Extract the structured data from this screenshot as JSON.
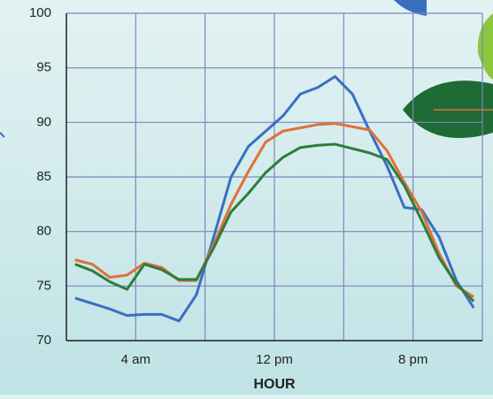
{
  "chart_data": {
    "type": "line",
    "x": [
      0.5,
      1.5,
      2.5,
      3.5,
      4.5,
      5.5,
      6.5,
      7.5,
      8.5,
      9.5,
      10.5,
      11.5,
      12.5,
      13.5,
      14.5,
      15.5,
      16.5,
      17.5,
      18.5,
      19.5,
      20.5,
      21.5,
      22.5,
      23.5
    ],
    "series": [
      {
        "color": "#3a6fc0",
        "values": [
          73.9,
          73.4,
          72.9,
          72.3,
          72.4,
          72.4,
          71.8,
          74.2,
          79.5,
          85,
          87.8,
          89.2,
          90.6,
          92.6,
          93.2,
          94.2,
          92.6,
          89.2,
          86,
          82.2,
          82,
          79.5,
          75.5,
          73
        ]
      },
      {
        "color": "#e0703a",
        "values": [
          77.4,
          77,
          75.8,
          76,
          77.1,
          76.7,
          75.5,
          75.5,
          78.8,
          82.5,
          85.5,
          88.2,
          89.2,
          89.5,
          89.8,
          89.9,
          89.6,
          89.3,
          87.4,
          84.5,
          81.8,
          78,
          75,
          74
        ]
      },
      {
        "color": "#2e7d3a",
        "values": [
          77,
          76.4,
          75.4,
          74.7,
          77,
          76.5,
          75.6,
          75.6,
          78.5,
          81.8,
          83.5,
          85.4,
          86.8,
          87.7,
          87.9,
          88,
          87.6,
          87.2,
          86.6,
          84.2,
          81,
          77.6,
          75.2,
          73.6
        ]
      }
    ],
    "xlim": [
      0,
      24
    ],
    "xticks": [
      {
        "value": 4,
        "label": "4 am"
      },
      {
        "value": 8,
        "label": null
      },
      {
        "value": 12,
        "label": "12 pm"
      },
      {
        "value": 16,
        "label": null
      },
      {
        "value": 20,
        "label": "8 pm"
      },
      {
        "value": 24,
        "label": null
      }
    ],
    "ylim": [
      70,
      100
    ],
    "yticks": [
      70,
      75,
      80,
      85,
      90,
      95,
      100
    ],
    "xlabel": "HOUR",
    "grid": true
  }
}
